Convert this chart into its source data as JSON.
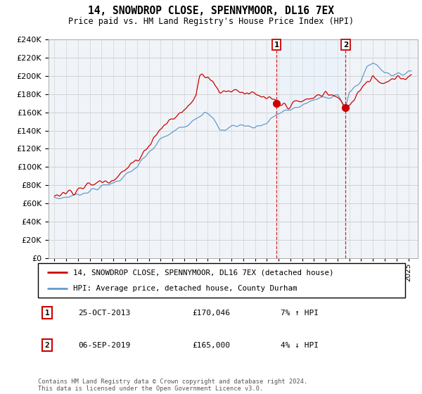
{
  "title": "14, SNOWDROP CLOSE, SPENNYMOOR, DL16 7EX",
  "subtitle": "Price paid vs. HM Land Registry's House Price Index (HPI)",
  "legend_line1": "14, SNOWDROP CLOSE, SPENNYMOOR, DL16 7EX (detached house)",
  "legend_line2": "HPI: Average price, detached house, County Durham",
  "annotation1_num": "1",
  "annotation1_date": "25-OCT-2013",
  "annotation1_price": "£170,046",
  "annotation1_hpi": "7% ↑ HPI",
  "annotation2_num": "2",
  "annotation2_date": "06-SEP-2019",
  "annotation2_price": "£165,000",
  "annotation2_hpi": "4% ↓ HPI",
  "footer": "Contains HM Land Registry data © Crown copyright and database right 2024.\nThis data is licensed under the Open Government Licence v3.0.",
  "marker1_year": 2013.82,
  "marker2_year": 2019.68,
  "marker1_price": 170046,
  "marker2_price": 165000,
  "red_color": "#cc0000",
  "blue_color": "#6699cc",
  "blue_fill_color": "#ddeeff",
  "ylim_min": 0,
  "ylim_max": 240000,
  "ytick_step": 20000,
  "bg_color": "#ffffff",
  "plot_bg": "#f0f4f8",
  "grid_color": "#cccccc",
  "xlim_min": 1994.5,
  "xlim_max": 2025.8
}
